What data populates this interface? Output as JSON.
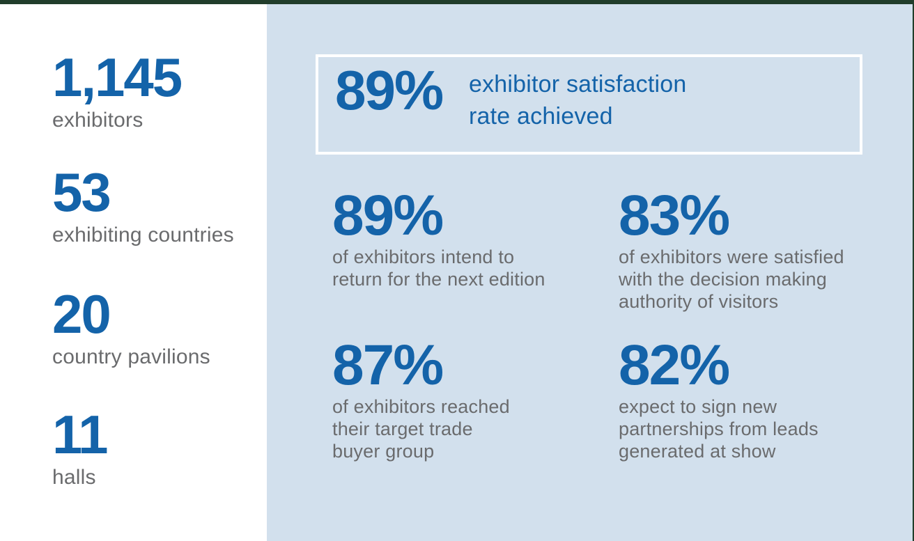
{
  "theme": {
    "accent_blue": "#1463a9",
    "text_gray": "#6a6b6d",
    "panel_blue": "#d2e0ed",
    "frame_green": "#213d2b",
    "box_border": "#ffffff"
  },
  "left_stats": [
    {
      "value": "1,145",
      "label": "exhibitors"
    },
    {
      "value": "53",
      "label": "exhibiting countries"
    },
    {
      "value": "20",
      "label": "country pavilions"
    },
    {
      "value": "11",
      "label": "halls"
    }
  ],
  "highlight": {
    "value": "89%",
    "label": "exhibitor satisfaction\nrate achieved"
  },
  "grid_stats": [
    {
      "value": "89%",
      "label": "of exhibitors intend to\nreturn for the next edition"
    },
    {
      "value": "83%",
      "label": "of exhibitors were satisfied\nwith the decision making\nauthority of visitors"
    },
    {
      "value": "87%",
      "label": "of exhibitors reached\ntheir target trade\nbuyer group"
    },
    {
      "value": "82%",
      "label": "expect to sign new\npartnerships from leads\ngenerated at show"
    }
  ]
}
